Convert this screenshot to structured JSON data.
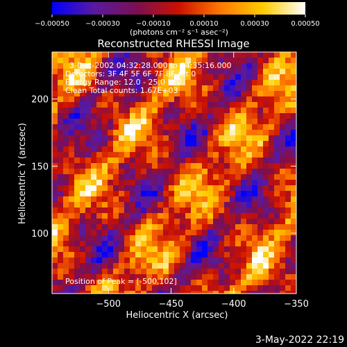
{
  "chart_data": {
    "type": "heatmap",
    "title": "Reconstructed RHESSI Image",
    "xlabel": "Heliocentric X (arcsec)",
    "ylabel": "Heliocentric Y (arcsec)",
    "xlim": [
      -545,
      -350
    ],
    "ylim": [
      55,
      235
    ],
    "xticks": [
      -500,
      -450,
      -400,
      -350
    ],
    "yticks": [
      100,
      150,
      200
    ],
    "xtick_labels": [
      "−500",
      "−450",
      "−400",
      "−350"
    ],
    "ytick_labels": [
      "100",
      "150",
      "200"
    ],
    "colorbar": {
      "range": [
        -0.0005,
        0.0005
      ],
      "ticks": [
        -0.0005,
        -0.0003,
        -0.0001,
        0.0001,
        0.0003,
        0.0005
      ],
      "tick_labels": [
        "−0.00050",
        "−0.00030",
        "−0.00010",
        "0.00010",
        "0.00030",
        "0.00050"
      ],
      "unit_label": "(photons cm⁻² s⁻¹ asec⁻²)",
      "colors": [
        "#0000ff",
        "#5a1aa0",
        "#7a0f52",
        "#cc1000",
        "#ff7a00",
        "#ffcc00",
        "#ffffff"
      ]
    },
    "annotations": [
      "3-Dec-2002 04:32:28.000 to 04:35:16.000",
      "Detectors: 3F 4F 5F 6F 7F 8F  Att 0",
      "Energy Range: 12.0 - 25.0 keV",
      "Clean     Total counts: 1.67E+03"
    ],
    "peak_label": "Position of Peak = [-500,102]",
    "grid": false
  },
  "footer": {
    "timestamp": "3-May-2022 22:19"
  }
}
